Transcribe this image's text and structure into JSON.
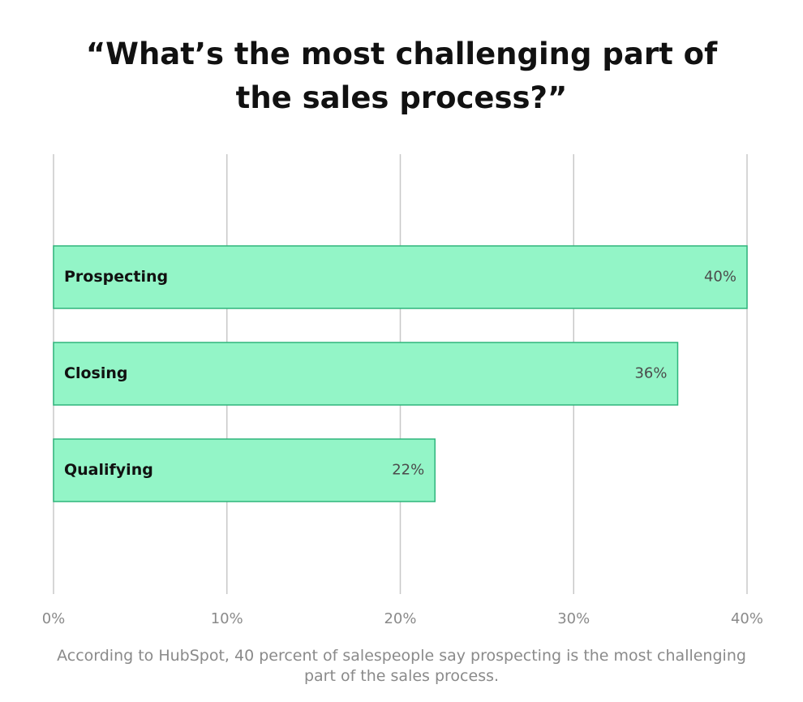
{
  "title": "“What’s the most challenging part of the sales process?”",
  "footnote": "According to HubSpot, 40 percent of salespeople say prospecting is the most challenging part of the sales process.",
  "colors": {
    "bar_fill": "#93F5C7",
    "bar_stroke": "#2FB57C",
    "grid": "#C8C8C8",
    "label_text": "#111111",
    "value_text": "#4B4B4B",
    "tick_text": "#8A8A8A",
    "footnote_text": "#8A8A8A"
  },
  "chart_data": {
    "type": "bar",
    "orientation": "horizontal",
    "title": "“What’s the most challenging part of the sales process?”",
    "categories": [
      "Prospecting",
      "Closing",
      "Qualifying"
    ],
    "values": [
      40,
      36,
      22
    ],
    "value_labels": [
      "40%",
      "36%",
      "22%"
    ],
    "xlim": [
      0,
      40
    ],
    "xticks": [
      0,
      10,
      20,
      30,
      40
    ],
    "xtick_labels": [
      "0%",
      "10%",
      "20%",
      "30%",
      "40%"
    ],
    "xlabel": "",
    "ylabel": "",
    "grid": true,
    "legend": "none"
  }
}
